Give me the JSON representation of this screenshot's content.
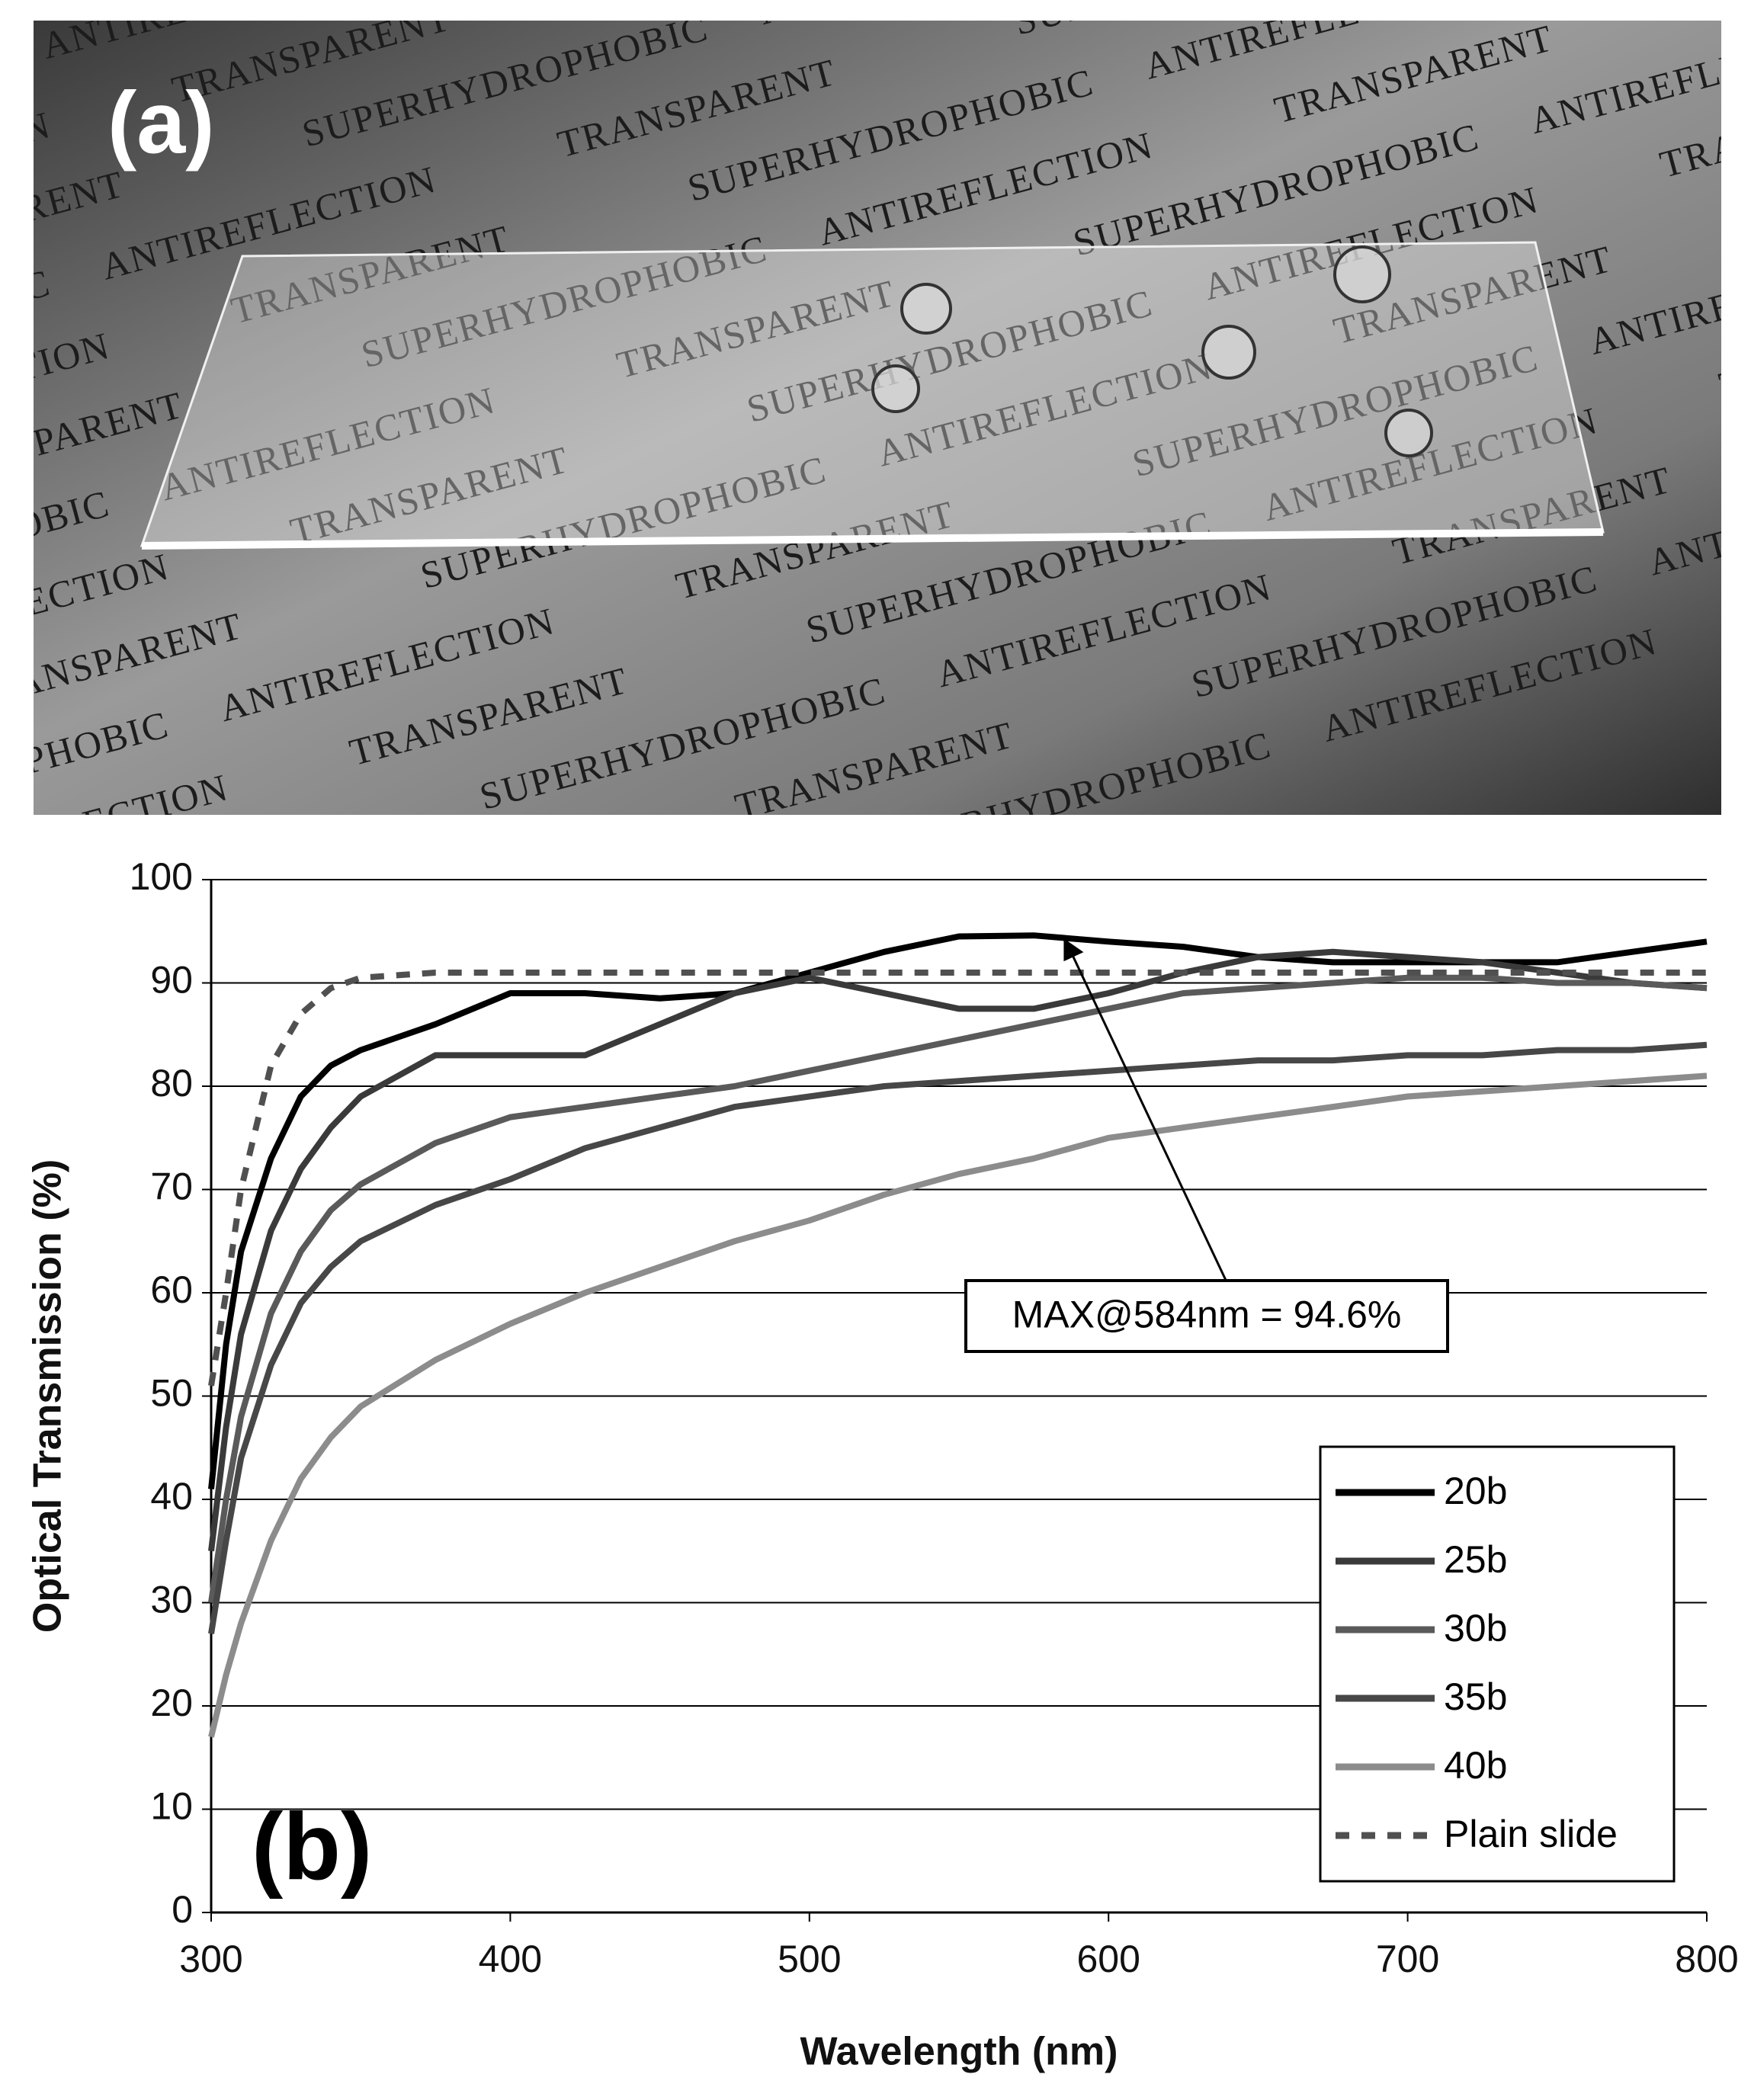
{
  "panel_a": {
    "label": "(a)",
    "words": [
      "SUPERHYDROPHOBIC",
      "ANTIREFLECTION",
      "TRANSPARENT"
    ]
  },
  "chart_data": {
    "type": "line",
    "panel_label": "(b)",
    "x_label": "Wavelength (nm)",
    "y_label": "Optical Transmission (%)",
    "x": [
      300,
      305,
      310,
      320,
      330,
      340,
      350,
      375,
      400,
      425,
      450,
      475,
      500,
      525,
      550,
      575,
      600,
      625,
      650,
      675,
      700,
      725,
      750,
      775,
      800
    ],
    "series": [
      {
        "name": "20b",
        "color": "#000000",
        "dash": false,
        "values": [
          41,
          55,
          64,
          73,
          79,
          82,
          83.5,
          86,
          89,
          89,
          88.5,
          89,
          91,
          93,
          94.5,
          94.6,
          94,
          93.5,
          92.5,
          92,
          92,
          92,
          92,
          93,
          94
        ]
      },
      {
        "name": "25b",
        "color": "#3a3a3a",
        "dash": false,
        "values": [
          35,
          47,
          56,
          66,
          72,
          76,
          79,
          83,
          83,
          83,
          86,
          89,
          90.5,
          89,
          87.5,
          87.5,
          89,
          91,
          92.5,
          93,
          92.5,
          92,
          91,
          90,
          89.5
        ]
      },
      {
        "name": "30b",
        "color": "#5a5a5a",
        "dash": false,
        "values": [
          30,
          40,
          48,
          58,
          64,
          68,
          70.5,
          74.5,
          77,
          78,
          79,
          80,
          81.5,
          83,
          84.5,
          86,
          87.5,
          89,
          89.5,
          90,
          90.5,
          90.5,
          90,
          90,
          89.5
        ]
      },
      {
        "name": "35b",
        "color": "#474747",
        "dash": false,
        "values": [
          27,
          36,
          44,
          53,
          59,
          62.5,
          65,
          68.5,
          71,
          74,
          76,
          78,
          79,
          80,
          80.5,
          81,
          81.5,
          82,
          82.5,
          82.5,
          83,
          83,
          83.5,
          83.5,
          84
        ]
      },
      {
        "name": "40b",
        "color": "#8c8c8c",
        "dash": false,
        "values": [
          17,
          23,
          28,
          36,
          42,
          46,
          49,
          53.5,
          57,
          60,
          62.5,
          65,
          67,
          69.5,
          71.5,
          73,
          75,
          76,
          77,
          78,
          79,
          79.5,
          80,
          80.5,
          81
        ]
      },
      {
        "name": "Plain slide",
        "color": "#505050",
        "dash": true,
        "values": [
          51,
          60,
          70,
          82,
          87,
          89.5,
          90.5,
          91,
          91,
          91,
          91,
          91,
          91,
          91,
          91,
          91,
          91,
          91,
          91,
          91,
          91,
          91,
          91,
          91,
          91
        ]
      }
    ],
    "annotation": {
      "text": "MAX@584nm = 94.6%",
      "x": 584,
      "y": 94.6
    },
    "xlim": [
      300,
      800
    ],
    "xticks": [
      300,
      400,
      500,
      600,
      700,
      800
    ],
    "ylim": [
      0,
      100
    ],
    "yticks": [
      0,
      10,
      20,
      30,
      40,
      50,
      60,
      70,
      80,
      90,
      100
    ],
    "grid": true,
    "legend": "lower right"
  }
}
